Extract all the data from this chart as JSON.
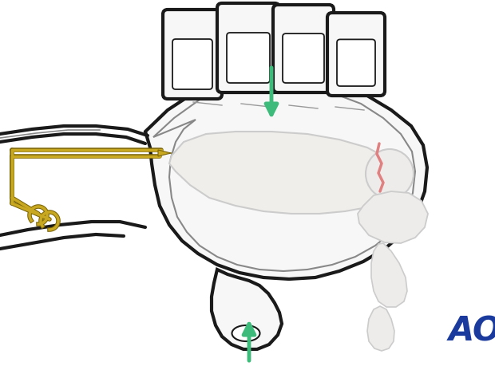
{
  "bg_color": "#ffffff",
  "outline_color": "#1a1a1a",
  "gray_color": "#888888",
  "light_gray": "#bbbbbb",
  "bone_fill": "#f0eeea",
  "bone_edge": "#cccccc",
  "fracture_color": "#e08080",
  "green_arrow": "#3dbb7a",
  "kwire_gold": "#c8a820",
  "kwire_dark": "#7a6408",
  "ao_blue": "#1a3a9e",
  "skin_fill": "#f7f7f7",
  "inner_skin": "#f2f2f2",
  "figsize": [
    6.2,
    4.59
  ],
  "dpi": 100
}
